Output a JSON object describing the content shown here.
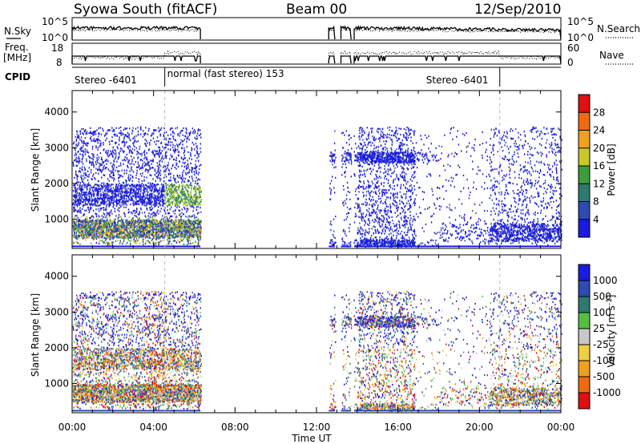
{
  "header": {
    "title": "Syowa South (fitACF)",
    "beam": "Beam 00",
    "date": "12/Sep/2010"
  },
  "top_panels": {
    "noise_left_label": "N.Sky",
    "noise_right_label": "N.Search",
    "noise_ticks": [
      "10^5",
      "10^0"
    ],
    "freq_left_label_1": "Freq.",
    "freq_left_label_2": "[MHz]",
    "freq_ticks_left": [
      "18",
      "8"
    ],
    "nave_label": "Nave",
    "nave_ticks_right": [
      "60",
      "0"
    ],
    "cpid_label": "CPID",
    "cpid_segments": [
      {
        "label": "Stereo -6401",
        "start_hr": 0.0,
        "end_hr": 4.55
      },
      {
        "label": "normal (fast stereo) 153",
        "start_hr": 4.55,
        "end_hr": 21.0
      },
      {
        "label": "Stereo -6401",
        "start_hr": 21.0,
        "end_hr": 24.0
      }
    ]
  },
  "power_colorbar": {
    "label": "Power [dB]",
    "ticks": [
      "4",
      "8",
      "12",
      "16",
      "20",
      "24",
      "28"
    ],
    "colors": [
      "#1a1ae0",
      "#2f4bb0",
      "#2f7a6e",
      "#3a9e3a",
      "#c8c82a",
      "#f0a020",
      "#f06a10",
      "#e01010"
    ]
  },
  "velocity_colorbar": {
    "label": "Velocity [m s",
    "label_sup": "-1",
    "label_end": "]",
    "ticks": [
      "1000",
      "500",
      "100",
      "25",
      "-25",
      "-100",
      "-500",
      "-1000"
    ],
    "colors": [
      "#1a1ae0",
      "#2f4bb0",
      "#2f7a6e",
      "#55c040",
      "#c8c8c8",
      "#f0d040",
      "#f0a020",
      "#f06a10",
      "#e01010"
    ]
  },
  "chart_data": {
    "type": "heatmap",
    "x_ticks": [
      "00:00",
      "04:00",
      "08:00",
      "12:00",
      "16:00",
      "20:00",
      "00:00"
    ],
    "xlabel": "Time UT",
    "ylabel": "Slant Range [km]",
    "y_ticks": [
      "1000",
      "2000",
      "3000",
      "4000"
    ],
    "xlim_hours": [
      0,
      24
    ],
    "ylim_km": [
      180,
      4600
    ],
    "data_intervals_hours": [
      [
        0.0,
        6.3
      ],
      [
        12.6,
        12.9
      ],
      [
        13.2,
        13.7
      ],
      [
        13.85,
        24.0
      ]
    ],
    "panels": [
      {
        "name": "Power",
        "parameter": "power"
      },
      {
        "name": "Velocity",
        "parameter": "velocity"
      }
    ]
  }
}
